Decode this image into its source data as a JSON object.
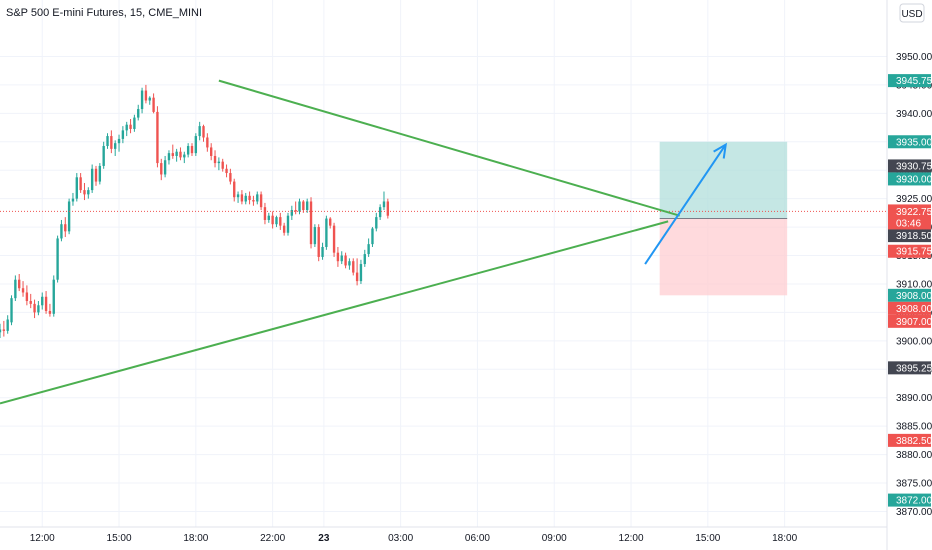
{
  "header": {
    "title": "S&P 500 E-mini Futures, 15, CME_MINI",
    "currency_button": "USD"
  },
  "colors": {
    "up": "#26a69a",
    "down": "#ef5350",
    "trendline": "#4caf50",
    "arrow": "#2196f3",
    "target_zone": "#b2dfdb",
    "stop_zone": "#ffcdd2",
    "grid": "#f0f3fa",
    "axis_text": "#131722"
  },
  "chart_data": {
    "type": "candlestick",
    "title": "S&P 500 E-mini Futures, 15, CME_MINI",
    "currency": "USD",
    "ylim": [
      3868.5,
      3955
    ],
    "xlim": [
      -0.55,
      11.0
    ],
    "grid": true,
    "y_ticks": [
      3950,
      3945,
      3940,
      3935,
      3930,
      3925,
      3920,
      3915,
      3910,
      3905,
      3900,
      3895,
      3890,
      3885,
      3880,
      3875,
      3870
    ],
    "x_ticks": [
      {
        "pos": 0,
        "label": "12:00"
      },
      {
        "pos": 1,
        "label": "15:00"
      },
      {
        "pos": 2,
        "label": "18:00"
      },
      {
        "pos": 3,
        "label": "22:00"
      },
      {
        "pos": 3.667,
        "label": "23"
      },
      {
        "pos": 4.667,
        "label": "03:00"
      },
      {
        "pos": 5.667,
        "label": "06:00"
      },
      {
        "pos": 6.667,
        "label": "09:00"
      },
      {
        "pos": 7.667,
        "label": "12:00"
      },
      {
        "pos": 8.667,
        "label": "15:00"
      },
      {
        "pos": 9.667,
        "label": "18:00"
      }
    ],
    "current_price": {
      "value": 3922.75,
      "label": "3922.75",
      "countdown": "03:46"
    },
    "price_labels": [
      {
        "value": 3945.75,
        "label": "3945.75",
        "kind": "up"
      },
      {
        "value": 3935.0,
        "label": "3935.00",
        "kind": "up"
      },
      {
        "value": 3930.75,
        "label": "3930.75",
        "kind": "neutral"
      },
      {
        "value": 3930.0,
        "label": "3930.00",
        "kind": "up"
      },
      {
        "value": 3921.5,
        "label": "3921.50",
        "kind": "neutral"
      },
      {
        "value": 3918.5,
        "label": "3918.50",
        "kind": "neutral"
      },
      {
        "value": 3915.75,
        "label": "3915.75",
        "kind": "down"
      },
      {
        "value": 3908.0,
        "label": "3908.00",
        "kind": "up"
      },
      {
        "value": 3908.0,
        "label": "3908.00",
        "kind": "down"
      },
      {
        "value": 3907.0,
        "label": "3907.00",
        "kind": "down"
      },
      {
        "value": 3895.25,
        "label": "3895.25",
        "kind": "neutral"
      },
      {
        "value": 3882.5,
        "label": "3882.50",
        "kind": "down"
      },
      {
        "value": 3872.0,
        "label": "3872.00",
        "kind": "up"
      }
    ],
    "trendlines": [
      {
        "name": "upper",
        "from": [
          2.3,
          3945.75
        ],
        "to": [
          8.3,
          3922.0
        ]
      },
      {
        "name": "lower",
        "from": [
          -0.55,
          3889.0
        ],
        "to": [
          8.15,
          3921.0
        ]
      }
    ],
    "arrow": {
      "from": [
        7.85,
        3913.5
      ],
      "to": [
        8.9,
        3934.5
      ]
    },
    "position": {
      "x_start": 8.04,
      "x_end": 9.7,
      "entry": 3921.5,
      "target": 3935.0,
      "stop": 3908.0
    },
    "candles": [
      {
        "t": -0.55,
        "o": 3901.5,
        "h": 3903.0,
        "l": 3900.5,
        "c": 3902.0
      },
      {
        "t": -0.5,
        "o": 3902.0,
        "h": 3903.5,
        "l": 3900.75,
        "c": 3901.75
      },
      {
        "t": -0.45,
        "o": 3901.75,
        "h": 3904.5,
        "l": 3901.25,
        "c": 3903.75
      },
      {
        "t": -0.4,
        "o": 3903.25,
        "h": 3908.0,
        "l": 3902.75,
        "c": 3907.5
      },
      {
        "t": -0.35,
        "o": 3907.5,
        "h": 3911.5,
        "l": 3907.0,
        "c": 3910.75
      },
      {
        "t": -0.3,
        "o": 3910.75,
        "h": 3911.75,
        "l": 3908.75,
        "c": 3909.25
      },
      {
        "t": -0.25,
        "o": 3909.25,
        "h": 3910.5,
        "l": 3907.75,
        "c": 3908.5
      },
      {
        "t": -0.2,
        "o": 3908.5,
        "h": 3909.75,
        "l": 3906.25,
        "c": 3907.0
      },
      {
        "t": -0.15,
        "o": 3907.0,
        "h": 3908.25,
        "l": 3905.75,
        "c": 3906.5
      },
      {
        "t": -0.1,
        "o": 3906.5,
        "h": 3907.25,
        "l": 3904.0,
        "c": 3905.0
      },
      {
        "t": -0.05,
        "o": 3905.0,
        "h": 3907.0,
        "l": 3904.5,
        "c": 3906.25
      },
      {
        "t": 0.0,
        "o": 3906.25,
        "h": 3908.5,
        "l": 3905.5,
        "c": 3907.75
      },
      {
        "t": 0.05,
        "o": 3907.75,
        "h": 3908.75,
        "l": 3904.75,
        "c": 3905.25
      },
      {
        "t": 0.1,
        "o": 3905.25,
        "h": 3906.5,
        "l": 3904.25,
        "c": 3904.75
      },
      {
        "t": 0.15,
        "o": 3904.75,
        "h": 3911.5,
        "l": 3904.25,
        "c": 3910.75
      },
      {
        "t": 0.2,
        "o": 3910.75,
        "h": 3918.5,
        "l": 3910.25,
        "c": 3918.0
      },
      {
        "t": 0.25,
        "o": 3918.0,
        "h": 3921.25,
        "l": 3917.5,
        "c": 3920.5
      },
      {
        "t": 0.3,
        "o": 3920.5,
        "h": 3921.75,
        "l": 3918.25,
        "c": 3919.25
      },
      {
        "t": 0.35,
        "o": 3919.25,
        "h": 3925.0,
        "l": 3918.75,
        "c": 3924.5
      },
      {
        "t": 0.4,
        "o": 3924.5,
        "h": 3926.0,
        "l": 3923.75,
        "c": 3925.0
      },
      {
        "t": 0.45,
        "o": 3925.0,
        "h": 3929.5,
        "l": 3924.5,
        "c": 3928.75
      },
      {
        "t": 0.5,
        "o": 3928.75,
        "h": 3929.5,
        "l": 3926.0,
        "c": 3926.5
      },
      {
        "t": 0.55,
        "o": 3926.5,
        "h": 3927.75,
        "l": 3924.75,
        "c": 3925.75
      },
      {
        "t": 0.6,
        "o": 3925.75,
        "h": 3927.0,
        "l": 3925.0,
        "c": 3926.5
      },
      {
        "t": 0.65,
        "o": 3926.5,
        "h": 3931.0,
        "l": 3926.0,
        "c": 3930.25
      },
      {
        "t": 0.7,
        "o": 3930.25,
        "h": 3930.75,
        "l": 3927.25,
        "c": 3928.0
      },
      {
        "t": 0.75,
        "o": 3928.0,
        "h": 3931.25,
        "l": 3927.5,
        "c": 3930.75
      },
      {
        "t": 0.8,
        "o": 3930.75,
        "h": 3935.0,
        "l": 3930.25,
        "c": 3934.25
      },
      {
        "t": 0.85,
        "o": 3934.25,
        "h": 3936.5,
        "l": 3933.75,
        "c": 3936.0
      },
      {
        "t": 0.9,
        "o": 3936.0,
        "h": 3937.0,
        "l": 3933.0,
        "c": 3933.75
      },
      {
        "t": 0.95,
        "o": 3933.75,
        "h": 3935.25,
        "l": 3932.5,
        "c": 3934.75
      },
      {
        "t": 1.0,
        "o": 3934.75,
        "h": 3936.25,
        "l": 3933.25,
        "c": 3935.5
      },
      {
        "t": 1.05,
        "o": 3935.5,
        "h": 3937.75,
        "l": 3934.75,
        "c": 3937.0
      },
      {
        "t": 1.1,
        "o": 3937.0,
        "h": 3938.5,
        "l": 3936.0,
        "c": 3938.0
      },
      {
        "t": 1.15,
        "o": 3938.0,
        "h": 3939.0,
        "l": 3936.5,
        "c": 3937.25
      },
      {
        "t": 1.2,
        "o": 3937.25,
        "h": 3939.75,
        "l": 3936.75,
        "c": 3939.25
      },
      {
        "t": 1.25,
        "o": 3939.25,
        "h": 3941.5,
        "l": 3938.75,
        "c": 3940.75
      },
      {
        "t": 1.3,
        "o": 3940.75,
        "h": 3944.5,
        "l": 3940.0,
        "c": 3944.0
      },
      {
        "t": 1.35,
        "o": 3944.0,
        "h": 3945.0,
        "l": 3941.75,
        "c": 3942.25
      },
      {
        "t": 1.4,
        "o": 3942.25,
        "h": 3943.0,
        "l": 3941.5,
        "c": 3942.75
      },
      {
        "t": 1.45,
        "o": 3942.75,
        "h": 3943.5,
        "l": 3940.0,
        "c": 3940.25
      },
      {
        "t": 1.5,
        "o": 3940.25,
        "h": 3941.25,
        "l": 3930.5,
        "c": 3931.25
      },
      {
        "t": 1.55,
        "o": 3931.25,
        "h": 3932.0,
        "l": 3928.25,
        "c": 3929.25
      },
      {
        "t": 1.6,
        "o": 3929.25,
        "h": 3932.5,
        "l": 3928.75,
        "c": 3931.75
      },
      {
        "t": 1.65,
        "o": 3931.75,
        "h": 3933.5,
        "l": 3931.0,
        "c": 3933.0
      },
      {
        "t": 1.7,
        "o": 3933.0,
        "h": 3934.5,
        "l": 3932.0,
        "c": 3932.5
      },
      {
        "t": 1.75,
        "o": 3932.5,
        "h": 3933.75,
        "l": 3931.5,
        "c": 3933.25
      },
      {
        "t": 1.8,
        "o": 3933.25,
        "h": 3934.0,
        "l": 3931.75,
        "c": 3932.25
      },
      {
        "t": 1.85,
        "o": 3932.25,
        "h": 3933.25,
        "l": 3931.25,
        "c": 3932.75
      },
      {
        "t": 1.9,
        "o": 3932.75,
        "h": 3934.75,
        "l": 3932.25,
        "c": 3934.25
      },
      {
        "t": 1.95,
        "o": 3934.25,
        "h": 3934.75,
        "l": 3932.5,
        "c": 3933.0
      },
      {
        "t": 2.0,
        "o": 3933.0,
        "h": 3936.5,
        "l": 3932.5,
        "c": 3936.0
      },
      {
        "t": 2.05,
        "o": 3936.0,
        "h": 3938.5,
        "l": 3935.25,
        "c": 3937.75
      },
      {
        "t": 2.1,
        "o": 3937.75,
        "h": 3938.0,
        "l": 3935.0,
        "c": 3935.75
      },
      {
        "t": 2.15,
        "o": 3935.75,
        "h": 3936.5,
        "l": 3933.25,
        "c": 3934.0
      },
      {
        "t": 2.2,
        "o": 3934.0,
        "h": 3934.75,
        "l": 3931.75,
        "c": 3932.5
      },
      {
        "t": 2.25,
        "o": 3932.5,
        "h": 3933.5,
        "l": 3930.5,
        "c": 3931.25
      },
      {
        "t": 2.3,
        "o": 3931.25,
        "h": 3932.25,
        "l": 3930.0,
        "c": 3931.5
      },
      {
        "t": 2.35,
        "o": 3931.5,
        "h": 3932.0,
        "l": 3929.75,
        "c": 3930.25
      },
      {
        "t": 2.4,
        "o": 3930.25,
        "h": 3931.0,
        "l": 3928.75,
        "c": 3929.5
      },
      {
        "t": 2.45,
        "o": 3929.5,
        "h": 3930.25,
        "l": 3927.5,
        "c": 3928.0
      },
      {
        "t": 2.5,
        "o": 3928.0,
        "h": 3928.5,
        "l": 3924.5,
        "c": 3925.25
      },
      {
        "t": 2.55,
        "o": 3925.25,
        "h": 3926.25,
        "l": 3924.25,
        "c": 3925.75
      },
      {
        "t": 2.6,
        "o": 3925.75,
        "h": 3926.5,
        "l": 3924.0,
        "c": 3924.5
      },
      {
        "t": 2.65,
        "o": 3924.5,
        "h": 3926.0,
        "l": 3924.0,
        "c": 3925.5
      },
      {
        "t": 2.7,
        "o": 3925.5,
        "h": 3926.25,
        "l": 3924.0,
        "c": 3924.75
      },
      {
        "t": 2.75,
        "o": 3924.75,
        "h": 3925.5,
        "l": 3923.75,
        "c": 3924.5
      },
      {
        "t": 2.8,
        "o": 3924.5,
        "h": 3926.25,
        "l": 3924.0,
        "c": 3925.75
      },
      {
        "t": 2.85,
        "o": 3925.75,
        "h": 3926.25,
        "l": 3923.0,
        "c": 3923.5
      },
      {
        "t": 2.9,
        "o": 3923.5,
        "h": 3924.25,
        "l": 3920.5,
        "c": 3921.25
      },
      {
        "t": 2.95,
        "o": 3921.25,
        "h": 3922.5,
        "l": 3920.75,
        "c": 3922.0
      },
      {
        "t": 3.0,
        "o": 3922.0,
        "h": 3922.75,
        "l": 3919.75,
        "c": 3920.5
      },
      {
        "t": 3.05,
        "o": 3920.5,
        "h": 3922.0,
        "l": 3920.0,
        "c": 3921.75
      },
      {
        "t": 3.1,
        "o": 3921.75,
        "h": 3922.5,
        "l": 3919.5,
        "c": 3920.25
      },
      {
        "t": 3.15,
        "o": 3920.25,
        "h": 3920.75,
        "l": 3918.5,
        "c": 3919.0
      },
      {
        "t": 3.2,
        "o": 3919.0,
        "h": 3922.5,
        "l": 3918.5,
        "c": 3922.0
      },
      {
        "t": 3.25,
        "o": 3922.0,
        "h": 3923.75,
        "l": 3921.25,
        "c": 3923.0
      },
      {
        "t": 3.3,
        "o": 3923.0,
        "h": 3924.5,
        "l": 3922.25,
        "c": 3922.75
      },
      {
        "t": 3.35,
        "o": 3922.75,
        "h": 3925.0,
        "l": 3922.25,
        "c": 3924.5
      },
      {
        "t": 3.4,
        "o": 3924.5,
        "h": 3924.75,
        "l": 3922.5,
        "c": 3923.0
      },
      {
        "t": 3.45,
        "o": 3923.0,
        "h": 3925.0,
        "l": 3922.5,
        "c": 3924.5
      },
      {
        "t": 3.5,
        "o": 3924.5,
        "h": 3925.25,
        "l": 3916.25,
        "c": 3917.0
      },
      {
        "t": 3.55,
        "o": 3917.0,
        "h": 3920.5,
        "l": 3916.5,
        "c": 3920.0
      },
      {
        "t": 3.6,
        "o": 3920.0,
        "h": 3920.5,
        "l": 3914.0,
        "c": 3914.75
      },
      {
        "t": 3.65,
        "o": 3914.75,
        "h": 3917.25,
        "l": 3914.25,
        "c": 3916.5
      },
      {
        "t": 3.7,
        "o": 3916.5,
        "h": 3922.0,
        "l": 3916.0,
        "c": 3921.5
      },
      {
        "t": 3.75,
        "o": 3921.5,
        "h": 3921.75,
        "l": 3919.75,
        "c": 3920.25
      },
      {
        "t": 3.8,
        "o": 3920.25,
        "h": 3920.75,
        "l": 3914.75,
        "c": 3915.5
      },
      {
        "t": 3.85,
        "o": 3915.5,
        "h": 3916.5,
        "l": 3913.0,
        "c": 3914.0
      },
      {
        "t": 3.9,
        "o": 3914.0,
        "h": 3915.75,
        "l": 3913.5,
        "c": 3915.0
      },
      {
        "t": 3.95,
        "o": 3915.0,
        "h": 3915.5,
        "l": 3912.75,
        "c": 3913.25
      },
      {
        "t": 4.0,
        "o": 3913.25,
        "h": 3914.5,
        "l": 3912.5,
        "c": 3914.0
      },
      {
        "t": 4.05,
        "o": 3914.0,
        "h": 3914.5,
        "l": 3911.5,
        "c": 3912.0
      },
      {
        "t": 4.1,
        "o": 3912.0,
        "h": 3914.5,
        "l": 3909.75,
        "c": 3910.5
      },
      {
        "t": 4.15,
        "o": 3910.5,
        "h": 3914.25,
        "l": 3910.0,
        "c": 3913.5
      },
      {
        "t": 4.2,
        "o": 3913.5,
        "h": 3916.0,
        "l": 3913.0,
        "c": 3915.25
      },
      {
        "t": 4.25,
        "o": 3915.25,
        "h": 3918.0,
        "l": 3914.75,
        "c": 3917.0
      },
      {
        "t": 4.3,
        "o": 3917.0,
        "h": 3920.0,
        "l": 3916.5,
        "c": 3919.75
      },
      {
        "t": 4.35,
        "o": 3919.75,
        "h": 3922.5,
        "l": 3919.25,
        "c": 3921.75
      },
      {
        "t": 4.4,
        "o": 3921.75,
        "h": 3924.0,
        "l": 3921.25,
        "c": 3923.5
      },
      {
        "t": 4.45,
        "o": 3923.5,
        "h": 3926.25,
        "l": 3923.0,
        "c": 3924.5
      },
      {
        "t": 4.5,
        "o": 3924.5,
        "h": 3925.0,
        "l": 3921.5,
        "c": 3922.0
      }
    ]
  }
}
